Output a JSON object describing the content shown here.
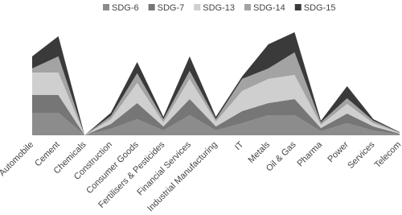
{
  "chart_data": {
    "type": "stacked-area",
    "categories": [
      "Automobile",
      "Cement",
      "Chemicals",
      "Construction",
      "Consumer Goods",
      "Fertilisers & Pesticides",
      "Financial Services",
      "Industrial Manufacturing",
      "IT",
      "Metals",
      "Oil & Gas",
      "Pharma",
      "Power",
      "Services",
      "Telecom"
    ],
    "series": [
      {
        "name": "SDG-6",
        "color": "#8c8c8c",
        "values": [
          28,
          28,
          0,
          8,
          20,
          6,
          25,
          6,
          15,
          25,
          25,
          5,
          15,
          6,
          1
        ]
      },
      {
        "name": "SDG-7",
        "color": "#767676",
        "values": [
          22,
          22,
          0,
          6,
          20,
          5,
          20,
          5,
          15,
          15,
          20,
          4,
          12,
          5,
          1
        ]
      },
      {
        "name": "SDG-13",
        "color": "#cfcfcf",
        "values": [
          28,
          28,
          0,
          6,
          25,
          5,
          25,
          6,
          25,
          30,
          30,
          4,
          12,
          4,
          1
        ]
      },
      {
        "name": "SDG-14",
        "color": "#a3a3a3",
        "values": [
          5,
          20,
          0,
          4,
          12,
          4,
          10,
          3,
          15,
          13,
          28,
          3,
          7,
          3,
          0.5
        ]
      },
      {
        "name": "SDG-15",
        "color": "#3a3a3a",
        "values": [
          15,
          25,
          0,
          4,
          14,
          3,
          18,
          3,
          3,
          30,
          25,
          2,
          15,
          2,
          0.5
        ]
      }
    ],
    "ylim": [
      0,
      130
    ],
    "legend": "top"
  }
}
